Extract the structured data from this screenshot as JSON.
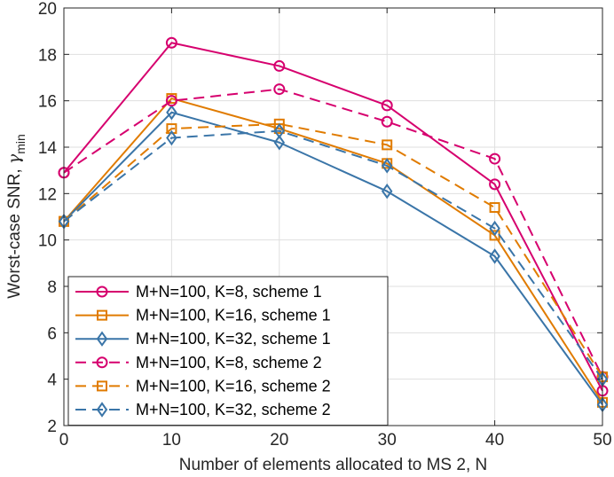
{
  "chart_data": {
    "type": "line",
    "xlabel": "Number of elements allocated to MS 2, N",
    "ylabel": "Worst-case SNR, ",
    "ylabel_symbol": "γ",
    "ylabel_subscript": "min",
    "x": [
      0,
      10,
      20,
      30,
      40,
      50
    ],
    "xlim": [
      0,
      50
    ],
    "ylim": [
      2,
      20
    ],
    "xticks": [
      0,
      10,
      20,
      30,
      40,
      50
    ],
    "yticks": [
      2,
      4,
      6,
      8,
      10,
      12,
      14,
      16,
      18,
      20
    ],
    "grid": true,
    "legend_position": "bottom-left",
    "series": [
      {
        "name": "M+N=100, K=8, scheme 1",
        "color": "#d6006e",
        "dash": "solid",
        "marker": "circle",
        "values": [
          12.9,
          18.5,
          17.5,
          15.8,
          12.4,
          3.5
        ]
      },
      {
        "name": "M+N=100, K=16, scheme 1",
        "color": "#e07b00",
        "dash": "solid",
        "marker": "square",
        "values": [
          10.8,
          16.1,
          14.8,
          13.3,
          10.2,
          3.0
        ]
      },
      {
        "name": "M+N=100, K=32, scheme 1",
        "color": "#3a75a8",
        "dash": "solid",
        "marker": "diamond",
        "values": [
          10.8,
          15.5,
          14.2,
          12.1,
          9.3,
          2.9
        ]
      },
      {
        "name": "M+N=100, K=8, scheme 2",
        "color": "#d6006e",
        "dash": "dashed",
        "marker": "circle",
        "values": [
          12.9,
          16.0,
          16.5,
          15.1,
          13.5,
          4.1
        ]
      },
      {
        "name": "M+N=100, K=16, scheme 2",
        "color": "#e07b00",
        "dash": "dashed",
        "marker": "square",
        "values": [
          10.8,
          14.8,
          15.0,
          14.1,
          11.4,
          4.1
        ]
      },
      {
        "name": "M+N=100, K=32, scheme 2",
        "color": "#3a75a8",
        "dash": "dashed",
        "marker": "diamond",
        "values": [
          10.8,
          14.4,
          14.7,
          13.2,
          10.5,
          4.0
        ]
      }
    ]
  }
}
